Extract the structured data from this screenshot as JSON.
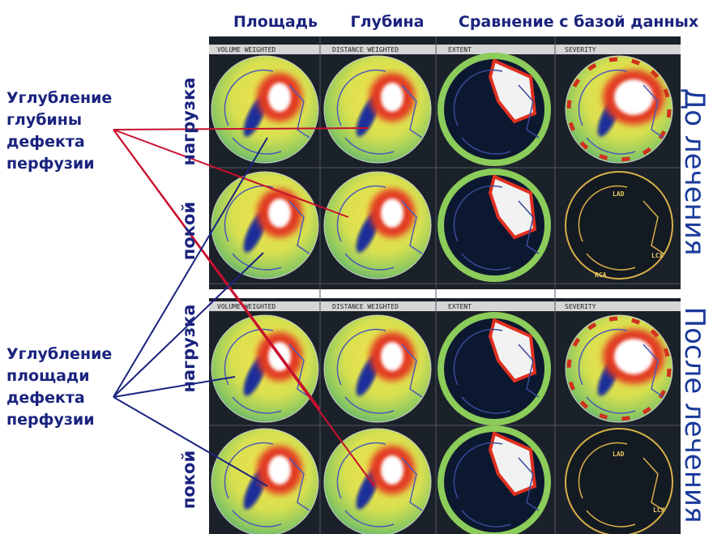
{
  "header": {
    "columns": [
      "Площадь",
      "Глубина",
      "Сравнение с базой данных"
    ]
  },
  "annotations": {
    "depth": [
      "Углубление",
      "глубины",
      "дефекта",
      "перфузии"
    ],
    "area": [
      "Углубление",
      "площади",
      "дефекта",
      "перфузии"
    ]
  },
  "row_labels": [
    "нагрузка",
    "покой",
    "нагрузка",
    "покой"
  ],
  "phase_labels": [
    "До лечения",
    "После лечения"
  ],
  "panels": {
    "top": [
      "VOLUME WEIGHTED",
      "DISTANCE WEIGHTED",
      "EXTENT",
      "SEVERITY"
    ],
    "bottom": [
      "VOLUME WEIGHTED",
      "DISTANCE WEIGHTED",
      "EXTENT",
      "SEVERITY"
    ]
  },
  "territories": [
    "LAD",
    "LCX",
    "RCA"
  ]
}
